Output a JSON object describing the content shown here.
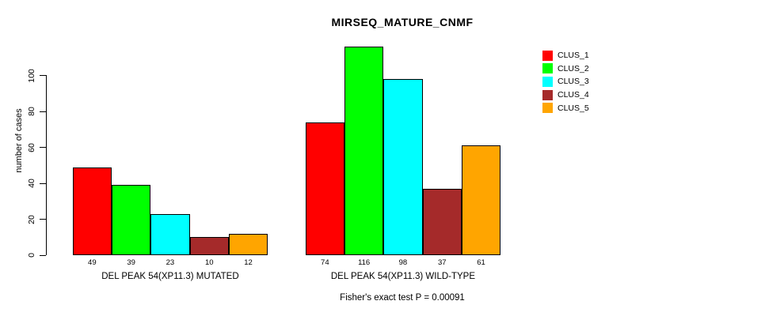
{
  "chart_data": {
    "type": "bar",
    "title": "MIRSEQ_MATURE_CNMF",
    "ylabel": "number of cases",
    "xlabel": "",
    "footer": "Fisher's exact test P = 0.00091",
    "yticks": [
      0,
      20,
      40,
      60,
      80,
      100
    ],
    "ylim": [
      0,
      120
    ],
    "grid": false,
    "legend_position": "top-right",
    "series": [
      {
        "name": "CLUS_1",
        "color": "#FF0000"
      },
      {
        "name": "CLUS_2",
        "color": "#00FF00"
      },
      {
        "name": "CLUS_3",
        "color": "#00FFFF"
      },
      {
        "name": "CLUS_4",
        "color": "#A52A2A"
      },
      {
        "name": "CLUS_5",
        "color": "#FFA500"
      }
    ],
    "groups": [
      {
        "label": "DEL PEAK 54(XP11.3) MUTATED",
        "values": [
          49,
          39,
          23,
          10,
          12
        ]
      },
      {
        "label": "DEL PEAK 54(XP11.3) WILD-TYPE",
        "values": [
          74,
          116,
          98,
          37,
          61
        ]
      }
    ]
  }
}
